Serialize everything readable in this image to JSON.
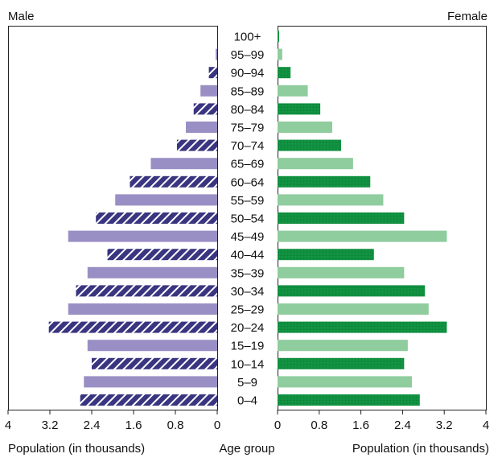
{
  "chart_data": {
    "type": "bar",
    "subtype": "population-pyramid",
    "title_left": "Male",
    "title_right": "Female",
    "center_label": "Age group",
    "xlabel_left": "Population (in thousands)",
    "xlabel_right": "Population (in thousands)",
    "xlim": [
      0,
      4
    ],
    "ticks_left": [
      "4",
      "3.2",
      "2.4",
      "1.6",
      "0.8",
      "0"
    ],
    "ticks_right": [
      "0",
      "0.8",
      "1.6",
      "2.4",
      "3.2",
      "4"
    ],
    "tick_values": [
      0,
      0.8,
      1.6,
      2.4,
      3.2,
      4
    ],
    "categories": [
      "0–4",
      "5–9",
      "10–14",
      "15–19",
      "20–24",
      "25–29",
      "30–34",
      "35–39",
      "40–44",
      "45–49",
      "50–54",
      "55–59",
      "60–64",
      "65–69",
      "70–74",
      "75–79",
      "80–84",
      "85–89",
      "90–94",
      "95–99",
      "100+"
    ],
    "series": [
      {
        "name": "Male",
        "values": [
          2.62,
          2.55,
          2.4,
          2.48,
          3.22,
          2.85,
          2.7,
          2.48,
          2.1,
          2.85,
          2.32,
          1.95,
          1.67,
          1.27,
          0.77,
          0.6,
          0.45,
          0.32,
          0.16,
          0.03,
          0.0
        ]
      },
      {
        "name": "Female",
        "values": [
          2.73,
          2.58,
          2.43,
          2.5,
          3.25,
          2.9,
          2.83,
          2.43,
          1.85,
          3.25,
          2.43,
          2.03,
          1.78,
          1.45,
          1.22,
          1.05,
          0.82,
          0.58,
          0.25,
          0.09,
          0.03
        ]
      }
    ],
    "colors": {
      "male_light": "#9a8fc4",
      "male_dark": "#3a3580",
      "female_light": "#8fcc9e",
      "female_dark": "#109040"
    }
  }
}
